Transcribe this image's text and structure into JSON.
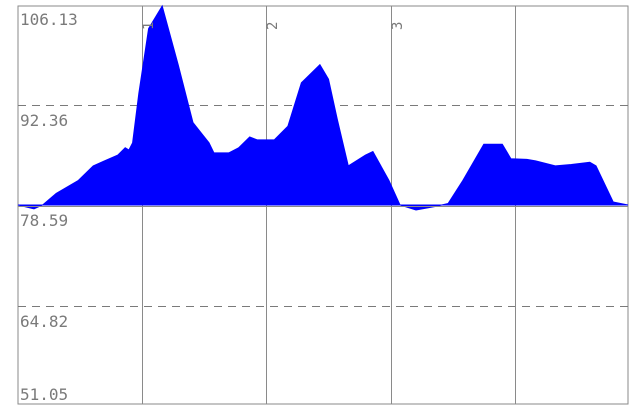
{
  "chart_data": {
    "type": "area",
    "baseline": 78.59,
    "ylim": [
      51.05,
      106.13
    ],
    "y_ticks": [
      "106.13",
      "92.36",
      "78.59",
      "64.82",
      "51.05"
    ],
    "grid": true,
    "fill_color": "#0000ff",
    "markers": [
      {
        "label": "1",
        "x": 1
      },
      {
        "label": "2",
        "x": 2
      },
      {
        "label": "3",
        "x": 3
      }
    ],
    "xlim": [
      -0.98,
      3.97
    ],
    "points": [
      [
        -0.98,
        78.59
      ],
      [
        -0.85,
        78.05
      ],
      [
        -0.78,
        78.59
      ],
      [
        -0.67,
        80.2
      ],
      [
        -0.49,
        82.0
      ],
      [
        -0.37,
        84.0
      ],
      [
        -0.28,
        84.7
      ],
      [
        -0.17,
        85.5
      ],
      [
        -0.11,
        86.5
      ],
      [
        -0.08,
        86.2
      ],
      [
        -0.05,
        87.2
      ],
      [
        0.0,
        94.0
      ],
      [
        0.08,
        103.0
      ],
      [
        0.19,
        106.13
      ],
      [
        0.32,
        98.0
      ],
      [
        0.44,
        90.0
      ],
      [
        0.57,
        87.2
      ],
      [
        0.61,
        85.8
      ],
      [
        0.73,
        85.8
      ],
      [
        0.81,
        86.5
      ],
      [
        0.9,
        88.0
      ],
      [
        0.96,
        87.6
      ],
      [
        1.1,
        87.6
      ],
      [
        1.21,
        89.5
      ],
      [
        1.32,
        95.5
      ],
      [
        1.47,
        98.0
      ],
      [
        1.54,
        96.0
      ],
      [
        1.61,
        90.5
      ],
      [
        1.7,
        84.0
      ],
      [
        1.84,
        85.5
      ],
      [
        1.9,
        86.0
      ],
      [
        2.03,
        82.0
      ],
      [
        2.12,
        78.59
      ],
      [
        2.25,
        77.9
      ],
      [
        2.41,
        78.4
      ],
      [
        2.51,
        78.8
      ],
      [
        2.63,
        82.0
      ],
      [
        2.8,
        87.0
      ],
      [
        2.95,
        87.0
      ],
      [
        3.02,
        85.0
      ],
      [
        3.15,
        84.9
      ],
      [
        3.22,
        84.7
      ],
      [
        3.38,
        84.0
      ],
      [
        3.51,
        84.2
      ],
      [
        3.66,
        84.5
      ],
      [
        3.71,
        84.0
      ],
      [
        3.85,
        79.0
      ],
      [
        3.97,
        78.59
      ]
    ]
  }
}
